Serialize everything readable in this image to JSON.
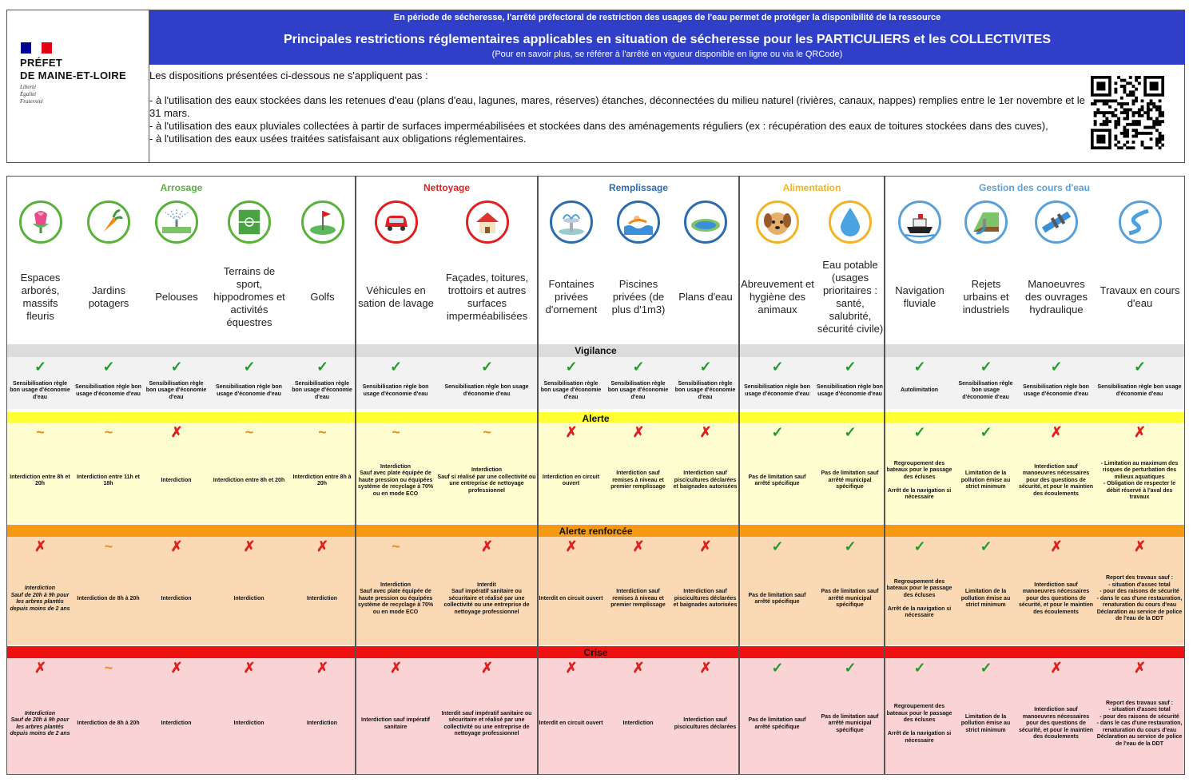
{
  "logo": {
    "name": "PRÉFET\nDE MAINE-ET-LOIRE",
    "motto": "Liberté\nÉgalité\nFraternité",
    "flag_colors": [
      "#000091",
      "#ffffff",
      "#e1000f"
    ]
  },
  "banner": {
    "top_line": "En période de sécheresse, l'arrêté préfectoral de restriction des usages de l'eau permet de protéger la disponibilité de la ressource",
    "title": "Principales restrictions réglementaires applicables en situation de sécheresse pour les PARTICULIERS et les COLLECTIVITES",
    "subtitle": "(Pour en savoir plus, se référer à l'arrêté en vigueur disponible en ligne ou via le QRCode)"
  },
  "intro": {
    "heading": "Les dispositions présentées ci-dessous ne s'appliquent pas :",
    "items": [
      "- à l'utilisation des eaux stockées dans les retenues d'eau (plans d'eau, lagunes, mares, réserves) étanches, déconnectées du milieu naturel (rivières, canaux, nappes) remplies entre le 1er novembre et le 31 mars.",
      "- à l'utilisation des eaux pluviales collectées à partir de surfaces imperméabilisées et stockées dans des aménagements réguliers (ex : récupération des eaux de toitures stockées dans des cuves),",
      "- à l'utilisation des eaux usées traitées satisfaisant aux obligations réglementaires."
    ],
    "qr_icon": "qr-code-icon"
  },
  "categories": [
    {
      "label": "Arrosage",
      "color": "#58b23a"
    },
    {
      "label": "Nettoyage",
      "color": "#e02020"
    },
    {
      "label": "Remplissage",
      "color": "#2b6cb0"
    },
    {
      "label": "Alimentation",
      "color": "#f2b324"
    },
    {
      "label": "Gestion des cours d'eau",
      "color": "#5aa0d8"
    }
  ],
  "columns": [
    {
      "label": "Espaces arborés, massifs fleuris",
      "icon": "flower-icon"
    },
    {
      "label": "Jardins potagers",
      "icon": "carrot-icon"
    },
    {
      "label": "Pelouses",
      "icon": "sprinkler-icon"
    },
    {
      "label": "Terrains de sport, hippodromes et activités équestres",
      "icon": "sports-field-icon"
    },
    {
      "label": "Golfs",
      "icon": "golf-flag-icon"
    },
    {
      "label": "Véhicules en sation de lavage",
      "icon": "car-icon"
    },
    {
      "label": "Façades, toitures, trottoirs et autres surfaces imperméabilisées",
      "icon": "house-icon"
    },
    {
      "label": "Fontaines privées d'ornement",
      "icon": "fountain-icon"
    },
    {
      "label": "Piscines privées (de plus d'1m3)",
      "icon": "swimmer-icon"
    },
    {
      "label": "Plans d'eau",
      "icon": "pond-icon"
    },
    {
      "label": "Abreuvement et hygiène des animaux",
      "icon": "dog-icon"
    },
    {
      "label": "Eau potable (usages prioritaires : santé, salubrité, sécurité civile)",
      "icon": "water-drop-icon"
    },
    {
      "label": "Navigation fluviale",
      "icon": "ship-icon"
    },
    {
      "label": "Rejets urbains et industriels",
      "icon": "outfall-icon"
    },
    {
      "label": "Manoeuvres des ouvrages hydraulique",
      "icon": "sluice-icon"
    },
    {
      "label": "Travaux en cours d'eau",
      "icon": "river-icon"
    }
  ],
  "levels": [
    {
      "name": "Vigilance",
      "band_color": "#dcdcdc",
      "bg": "#f2f2f2",
      "cells": [
        {
          "s": "ok",
          "t": "Sensibilisation règle bon usage d'économie d'eau"
        },
        {
          "s": "ok",
          "t": "Sensibilisation règle bon usage d'économie d'eau"
        },
        {
          "s": "ok",
          "t": "Sensibilisation règle bon usage d'économie d'eau"
        },
        {
          "s": "ok",
          "t": "Sensibilisation règle bon usage d'économie d'eau"
        },
        {
          "s": "ok",
          "t": "Sensibilisation règle bon usage d'économie d'eau"
        },
        {
          "s": "ok",
          "t": "Sensibilisation règle bon usage d'économie d'eau"
        },
        {
          "s": "ok",
          "t": "Sensibilisation règle bon usage d'économie d'eau"
        },
        {
          "s": "ok",
          "t": "Sensibilisation règle bon usage d'économie d'eau"
        },
        {
          "s": "ok",
          "t": "Sensibilisation règle bon usage d'économie d'eau"
        },
        {
          "s": "ok",
          "t": "Sensibilisation règle bon usage d'économie d'eau"
        },
        {
          "s": "ok",
          "t": "Sensibilisation règle bon usage d'économie d'eau"
        },
        {
          "s": "ok",
          "t": "Sensibilisation règle bon usage d'économie d'eau"
        },
        {
          "s": "ok",
          "t": "Autolimitation"
        },
        {
          "s": "ok",
          "t": "Sensibilisation règle bon usage d'économie d'eau"
        },
        {
          "s": "ok",
          "t": "Sensibilisation règle bon usage d'économie d'eau"
        },
        {
          "s": "ok",
          "t": "Sensibilisation règle bon usage d'économie d'eau"
        }
      ]
    },
    {
      "name": "Alerte",
      "band_color": "#ffff33",
      "bg": "#fdfdd0",
      "cells": [
        {
          "s": "mid",
          "t": "Interdiction entre 8h et 20h"
        },
        {
          "s": "mid",
          "t": "Interdiction entre 11h et 18h"
        },
        {
          "s": "no",
          "t": "Interdiction"
        },
        {
          "s": "mid",
          "t": "Interdiction entre 8h et 20h"
        },
        {
          "s": "mid",
          "t": "Interdiction entre 8h à 20h"
        },
        {
          "s": "mid",
          "t": "Interdiction\nSauf avec plate équipée de haute pression ou équipées système de recyclage à 70% ou en mode ECO"
        },
        {
          "s": "mid",
          "t": "Interdiction\nSauf si réalisé par une collectivité ou une entreprise de nettoyage professionnel"
        },
        {
          "s": "no",
          "t": "Interdiction en circuit ouvert"
        },
        {
          "s": "no",
          "t": "Interdiction sauf remises à niveau et premier remplissage"
        },
        {
          "s": "no",
          "t": "Interdiction sauf piscicultures déclarées et baignades autorisées"
        },
        {
          "s": "ok",
          "t": "Pas de limitation sauf arrêté spécifique"
        },
        {
          "s": "ok",
          "t": "Pas de limitation sauf arrêté municipal spécifique"
        },
        {
          "s": "ok",
          "t": "Regroupement des bateaux pour le passage des écluses\n\nArrêt de la navigation si nécessaire"
        },
        {
          "s": "ok",
          "t": "Limitation de la pollution émise au strict minimum"
        },
        {
          "s": "no",
          "t": "Interdiction sauf manoeuvres nécessaires pour des questions de sécurité, et pour le maintien des écoulements"
        },
        {
          "s": "no",
          "t": "- Limitation au maximum des risques de perturbation des milieux aquatiques\n- Obligation de respecter le débit réservé à l'aval des travaux"
        }
      ]
    },
    {
      "name": "Alerte renforcée",
      "band_color": "#f59a12",
      "bg": "#fbd9b5",
      "cells": [
        {
          "s": "no",
          "t": "Interdiction\nSauf de 20h à 9h pour les arbres plantés depuis moins de 2 ans"
        },
        {
          "s": "mid",
          "t": "Interdiction de 8h à 20h"
        },
        {
          "s": "no",
          "t": "Interdiction"
        },
        {
          "s": "no",
          "t": "Interdiction"
        },
        {
          "s": "no",
          "t": "Interdiction"
        },
        {
          "s": "mid",
          "t": "Interdiction\nSauf avec plate équipée de haute pression ou équipées système de recyclage à 70% ou en mode ECO"
        },
        {
          "s": "no",
          "t": "Interdit\nSauf impératif sanitaire ou sécuritaire et réalisé par une collectivité ou une entreprise de nettoyage professionnel"
        },
        {
          "s": "no",
          "t": "Interdit en circuit ouvert"
        },
        {
          "s": "no",
          "t": "Interdiction sauf remises à niveau et premier remplissage"
        },
        {
          "s": "no",
          "t": "Interdiction sauf piscicultures déclarées et baignades autorisées"
        },
        {
          "s": "ok",
          "t": "Pas de limitation sauf arrêté spécifique"
        },
        {
          "s": "ok",
          "t": "Pas de limitation sauf arrêté municipal spécifique"
        },
        {
          "s": "ok",
          "t": "Regroupement des bateaux pour le passage des écluses\n\nArrêt de la navigation si nécessaire"
        },
        {
          "s": "ok",
          "t": "Limitation de la pollution émise au strict minimum"
        },
        {
          "s": "no",
          "t": "Interdiction sauf manoeuvres nécessaires pour des questions de sécurité, et pour le maintien des écoulements"
        },
        {
          "s": "no",
          "t": "Report des travaux sauf :\n- situation d'assec total\n- pour des raisons de sécurité\n- dans le cas d'une restauration, renaturation du cours d'eau\nDéclaration au service de police de l'eau de la DDT"
        }
      ]
    },
    {
      "name": "Crise",
      "band_color": "#ee1111",
      "bg": "#fad4d4",
      "cells": [
        {
          "s": "no",
          "t": "Interdiction\nSauf de 20h à 9h pour les arbres plantés depuis moins de 2 ans"
        },
        {
          "s": "mid",
          "t": "Interdiction de 8h à 20h"
        },
        {
          "s": "no",
          "t": "Interdiction"
        },
        {
          "s": "no",
          "t": "Interdiction"
        },
        {
          "s": "no",
          "t": "Interdiction"
        },
        {
          "s": "no",
          "t": "Interdiction sauf impératif sanitaire"
        },
        {
          "s": "no",
          "t": "Interdit sauf impératif sanitaire ou sécuritaire et réalisé par une collectivité ou une entreprise de nettoyage professionnel"
        },
        {
          "s": "no",
          "t": "Interdit en circuit ouvert"
        },
        {
          "s": "no",
          "t": "Interdiction"
        },
        {
          "s": "no",
          "t": "Interdiction sauf piscicultures déclarées"
        },
        {
          "s": "ok",
          "t": "Pas de limitation sauf arrêté spécifique"
        },
        {
          "s": "ok",
          "t": "Pas de limitation sauf arrêté municipal spécifique"
        },
        {
          "s": "ok",
          "t": "Regroupement des bateaux pour le passage des écluses\n\nArrêt de la navigation si nécessaire"
        },
        {
          "s": "ok",
          "t": "Limitation de la pollution émise au strict minimum"
        },
        {
          "s": "no",
          "t": "Interdiction sauf manoeuvres nécessaires pour des questions de sécurité, et pour le maintien des écoulements"
        },
        {
          "s": "no",
          "t": "Report des travaux sauf :\n- situation d'assec total\n- pour des raisons de sécurité\n- dans le cas d'une restauration, renaturation du cours d'eau\nDéclaration au service de police de l'eau de la DDT"
        }
      ]
    }
  ],
  "symbols": {
    "ok": "✓",
    "no": "✗",
    "mid": "~"
  }
}
